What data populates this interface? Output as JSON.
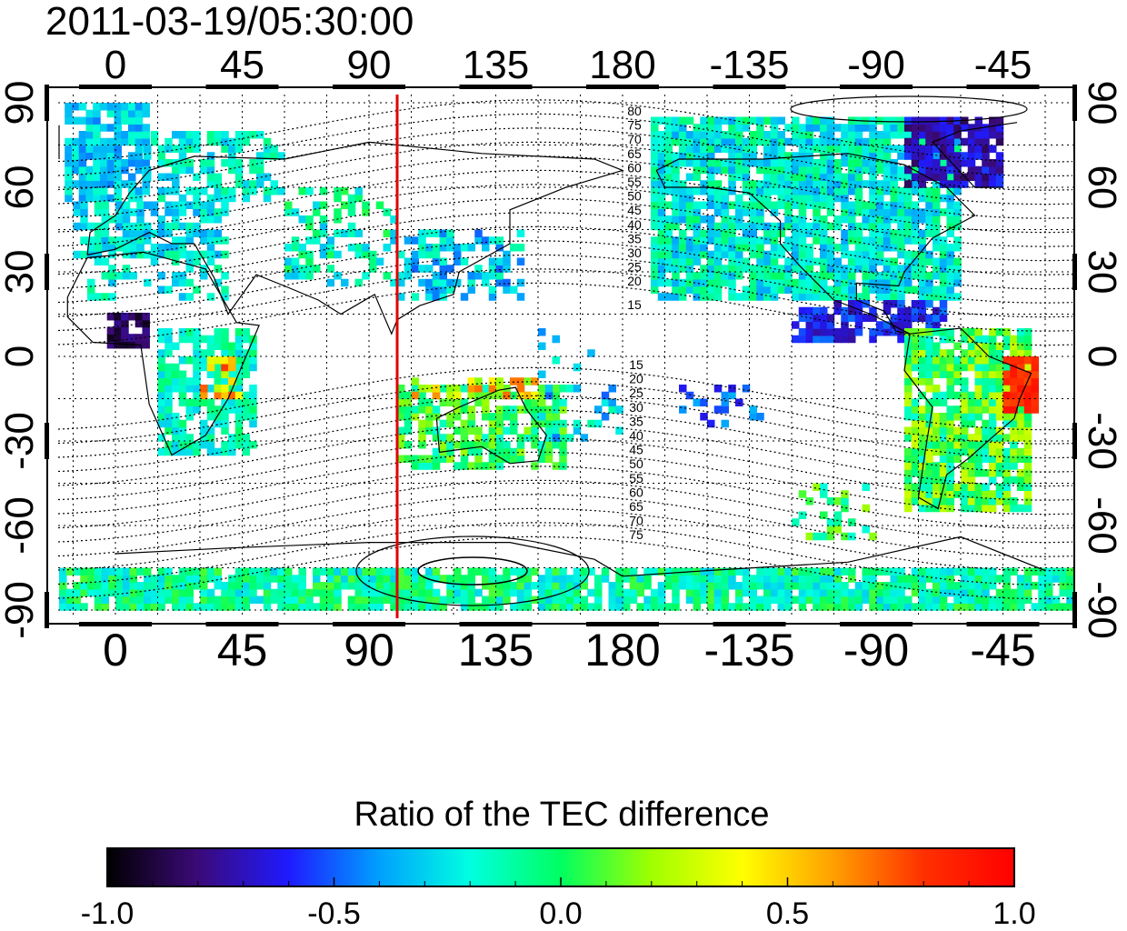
{
  "timestamp": "2011-03-19/05:30:00",
  "lon_ticks": [
    "0",
    "45",
    "90",
    "135",
    "180",
    "-135",
    "-90",
    "-45"
  ],
  "lat_ticks_left": [
    "90",
    "60",
    "30",
    "0",
    "-30",
    "-60",
    "-90"
  ],
  "lat_ticks_right": [
    "90",
    "60",
    "30",
    "0",
    "-30",
    "-60",
    "-90"
  ],
  "contour_labels_north": [
    "80",
    "75",
    "70",
    "65",
    "60",
    "55",
    "50",
    "45",
    "40",
    "35",
    "30",
    "25",
    "20",
    "15"
  ],
  "contour_labels_south": [
    "15",
    "20",
    "25",
    "30",
    "35",
    "40",
    "45",
    "50",
    "55",
    "60",
    "65",
    "70",
    "75"
  ],
  "colorbar": {
    "title": "Ratio of the TEC difference",
    "tick_labels": [
      "-1.0",
      "-0.5",
      "0.0",
      "0.5",
      "1.0"
    ],
    "range": [
      -1.0,
      1.0
    ],
    "colors": [
      "#000000",
      "#3b0a78",
      "#1f1aff",
      "#00a0ff",
      "#00ffe0",
      "#00ff60",
      "#a0ff00",
      "#ffff00",
      "#ffa000",
      "#ff3000",
      "#ff0000"
    ]
  },
  "map": {
    "lon_center": 20,
    "red_line_lon": 100,
    "ocean_color": "#ffffff"
  }
}
